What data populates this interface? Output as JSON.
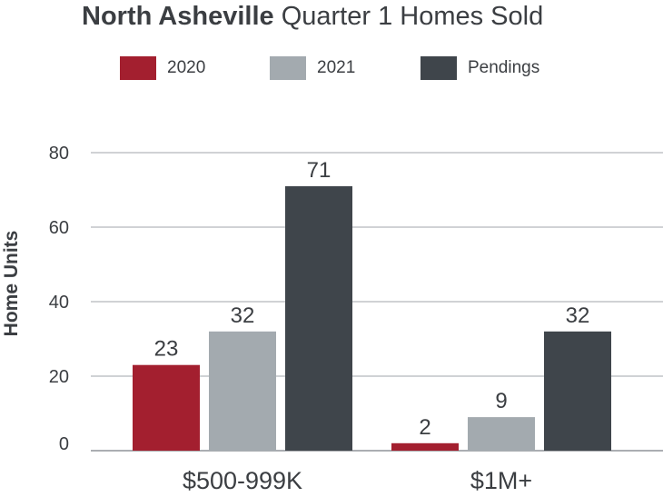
{
  "title": {
    "bold": "North Asheville",
    "rest": "Quarter 1 Homes Sold"
  },
  "legend": [
    {
      "label": "2020",
      "color": "#a31f2f"
    },
    {
      "label": "2021",
      "color": "#a3aaaf"
    },
    {
      "label": "Pendings",
      "color": "#3f454b"
    }
  ],
  "chart_data": {
    "type": "bar",
    "categories": [
      "$500-999K",
      "$1M+"
    ],
    "series": [
      {
        "name": "2020",
        "values": [
          23,
          2
        ],
        "color": "#a31f2f"
      },
      {
        "name": "2021",
        "values": [
          32,
          9
        ],
        "color": "#a3aaaf"
      },
      {
        "name": "Pendings",
        "values": [
          71,
          32
        ],
        "color": "#3f454b"
      }
    ],
    "data_labels": [
      [
        "23",
        "2"
      ],
      [
        "32",
        "9"
      ],
      [
        "71",
        "32"
      ]
    ],
    "title": "North Asheville Quarter 1 Homes Sold",
    "xlabel": "",
    "ylabel": "Home Units",
    "ylim": [
      0,
      80
    ],
    "yticks": [
      0,
      20,
      40,
      60,
      80
    ],
    "grid": true,
    "legend_position": "top"
  }
}
